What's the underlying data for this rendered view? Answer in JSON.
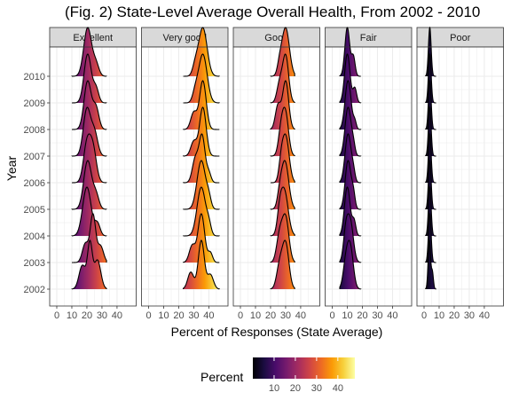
{
  "chart_data": {
    "type": "ridgeline",
    "title": "(Fig. 2) State-Level Average Overall Health, From 2002 - 2010",
    "xlabel": "Percent of Responses (State Average)",
    "ylabel": "Year",
    "xlim": [
      0,
      48
    ],
    "x_ticks": [
      0,
      10,
      20,
      30,
      40
    ],
    "years": [
      "2002",
      "2003",
      "2004",
      "2005",
      "2006",
      "2007",
      "2008",
      "2009",
      "2010"
    ],
    "facets": [
      {
        "name": "Excellent",
        "range": [
          10,
          33
        ],
        "peaks": [
          {
            "year": "2002",
            "modes": [
              [
                17,
                2.2,
                0.45
              ],
              [
                22,
                1.6,
                0.85
              ],
              [
                27,
                2.2,
                0.55
              ]
            ]
          },
          {
            "year": "2003",
            "modes": [
              [
                19,
                2.0,
                0.4
              ],
              [
                24,
                1.8,
                1.0
              ],
              [
                29,
                2.0,
                0.35
              ]
            ]
          },
          {
            "year": "2004",
            "modes": [
              [
                20,
                2.8,
                1.0
              ],
              [
                27,
                1.8,
                0.25
              ]
            ]
          },
          {
            "year": "2005",
            "modes": [
              [
                20.5,
                2.6,
                1.0
              ],
              [
                26,
                2.0,
                0.3
              ]
            ]
          },
          {
            "year": "2006",
            "modes": [
              [
                20,
                2.3,
                0.85
              ],
              [
                24,
                2.3,
                0.75
              ]
            ]
          },
          {
            "year": "2007",
            "modes": [
              [
                20,
                2.4,
                1.0
              ],
              [
                25,
                2.2,
                0.5
              ]
            ]
          },
          {
            "year": "2008",
            "modes": [
              [
                20.5,
                2.4,
                1.0
              ],
              [
                26,
                2.0,
                0.45
              ]
            ]
          },
          {
            "year": "2009",
            "modes": [
              [
                20.5,
                2.4,
                1.0
              ],
              [
                26,
                1.8,
                0.3
              ]
            ]
          },
          {
            "year": "2010",
            "modes": [
              [
                20.5,
                2.6,
                1.0
              ],
              [
                26,
                2.0,
                0.25
              ]
            ]
          }
        ]
      },
      {
        "name": "Very good",
        "range": [
          23,
          47
        ],
        "peaks": [
          {
            "year": "2002",
            "modes": [
              [
                28,
                2.0,
                0.35
              ],
              [
                35,
                2.0,
                1.0
              ],
              [
                41,
                2.0,
                0.3
              ]
            ]
          },
          {
            "year": "2003",
            "modes": [
              [
                29,
                2.0,
                0.35
              ],
              [
                35,
                2.2,
                1.0
              ],
              [
                41,
                1.5,
                0.2
              ]
            ]
          },
          {
            "year": "2004",
            "modes": [
              [
                35,
                2.8,
                1.0
              ],
              [
                40,
                1.5,
                0.2
              ]
            ]
          },
          {
            "year": "2005",
            "modes": [
              [
                35,
                2.8,
                1.0
              ],
              [
                40,
                1.5,
                0.2
              ]
            ]
          },
          {
            "year": "2006",
            "modes": [
              [
                31,
                2.0,
                0.5
              ],
              [
                35.5,
                2.0,
                1.0
              ],
              [
                40,
                1.5,
                0.2
              ]
            ]
          },
          {
            "year": "2007",
            "modes": [
              [
                30,
                2.0,
                0.3
              ],
              [
                36,
                2.2,
                1.0
              ]
            ]
          },
          {
            "year": "2008",
            "modes": [
              [
                30,
                2.0,
                0.35
              ],
              [
                36,
                2.2,
                1.0
              ]
            ]
          },
          {
            "year": "2009",
            "modes": [
              [
                36,
                2.8,
                1.0
              ],
              [
                31,
                1.8,
                0.2
              ]
            ]
          },
          {
            "year": "2010",
            "modes": [
              [
                36,
                2.8,
                1.0
              ],
              [
                31,
                1.8,
                0.2
              ]
            ]
          }
        ]
      },
      {
        "name": "Good",
        "range": [
          20,
          36
        ],
        "peaks": [
          {
            "year": "2002",
            "modes": [
              [
                26,
                2.0,
                0.5
              ],
              [
                30,
                2.2,
                1.0
              ]
            ]
          },
          {
            "year": "2003",
            "modes": [
              [
                26,
                2.0,
                0.6
              ],
              [
                30,
                2.2,
                1.0
              ]
            ]
          },
          {
            "year": "2004",
            "modes": [
              [
                29,
                2.6,
                1.0
              ],
              [
                26,
                1.5,
                0.3
              ]
            ]
          },
          {
            "year": "2005",
            "modes": [
              [
                29.5,
                2.5,
                1.0
              ],
              [
                26,
                1.5,
                0.2
              ]
            ]
          },
          {
            "year": "2006",
            "modes": [
              [
                30,
                2.3,
                1.0
              ],
              [
                27,
                1.5,
                0.3
              ]
            ]
          },
          {
            "year": "2007",
            "modes": [
              [
                27,
                1.8,
                0.6
              ],
              [
                30,
                2.0,
                1.0
              ]
            ]
          },
          {
            "year": "2008",
            "modes": [
              [
                25,
                1.8,
                0.5
              ],
              [
                30,
                2.0,
                1.0
              ]
            ]
          },
          {
            "year": "2009",
            "modes": [
              [
                26,
                1.8,
                0.4
              ],
              [
                30,
                2.0,
                1.0
              ]
            ]
          },
          {
            "year": "2010",
            "modes": [
              [
                30,
                2.5,
                1.0
              ],
              [
                26,
                1.5,
                0.2
              ]
            ]
          }
        ]
      },
      {
        "name": "Fair",
        "range": [
          5,
          19
        ],
        "peaks": [
          {
            "year": "2002",
            "modes": [
              [
                9,
                1.8,
                0.6
              ],
              [
                12,
                2.0,
                1.0
              ]
            ]
          },
          {
            "year": "2003",
            "modes": [
              [
                9,
                1.6,
                0.7
              ],
              [
                12,
                2.0,
                1.0
              ]
            ]
          },
          {
            "year": "2004",
            "modes": [
              [
                10,
                1.9,
                1.0
              ],
              [
                14.5,
                1.2,
                0.3
              ]
            ]
          },
          {
            "year": "2005",
            "modes": [
              [
                10.5,
                1.9,
                1.0
              ],
              [
                14,
                1.2,
                0.3
              ]
            ]
          },
          {
            "year": "2006",
            "modes": [
              [
                10.5,
                2.0,
                1.0
              ],
              [
                14,
                1.2,
                0.2
              ]
            ]
          },
          {
            "year": "2007",
            "modes": [
              [
                10.5,
                2.0,
                1.0
              ],
              [
                14,
                1.2,
                0.2
              ]
            ]
          },
          {
            "year": "2008",
            "modes": [
              [
                10.5,
                2.0,
                1.0
              ],
              [
                15,
                1.0,
                0.15
              ]
            ]
          },
          {
            "year": "2009",
            "modes": [
              [
                10,
                1.8,
                1.0
              ],
              [
                15,
                1.2,
                0.3
              ]
            ]
          },
          {
            "year": "2010",
            "modes": [
              [
                10,
                1.6,
                1.0
              ],
              [
                14,
                1.2,
                0.4
              ]
            ]
          }
        ]
      },
      {
        "name": "Poor",
        "range": [
          1,
          8
        ],
        "peaks": [
          {
            "year": "2002",
            "modes": [
              [
                3.5,
                0.8,
                1.0
              ],
              [
                5.5,
                0.7,
                0.35
              ]
            ]
          },
          {
            "year": "2003",
            "modes": [
              [
                3.8,
                0.9,
                1.0
              ]
            ]
          },
          {
            "year": "2004",
            "modes": [
              [
                3.8,
                0.9,
                1.0
              ]
            ]
          },
          {
            "year": "2005",
            "modes": [
              [
                3.8,
                0.9,
                1.0
              ]
            ]
          },
          {
            "year": "2006",
            "modes": [
              [
                3.8,
                0.9,
                1.0
              ]
            ]
          },
          {
            "year": "2007",
            "modes": [
              [
                3.8,
                0.9,
                1.0
              ]
            ]
          },
          {
            "year": "2008",
            "modes": [
              [
                3.8,
                0.9,
                1.0
              ]
            ]
          },
          {
            "year": "2009",
            "modes": [
              [
                3.8,
                0.9,
                1.0
              ]
            ]
          },
          {
            "year": "2010",
            "modes": [
              [
                3.8,
                0.9,
                1.0
              ]
            ]
          }
        ]
      }
    ],
    "fill_scale": {
      "name": "Percent",
      "palette": "inferno",
      "limits": [
        0,
        48
      ],
      "ticks": [
        10,
        20,
        30,
        40
      ]
    },
    "legend_position": "bottom",
    "grid": true,
    "colors": {
      "strip_bg": "#d9d9d9",
      "panel_border": "#333333",
      "grid": "#ebebeb",
      "outline": "#000000"
    }
  }
}
